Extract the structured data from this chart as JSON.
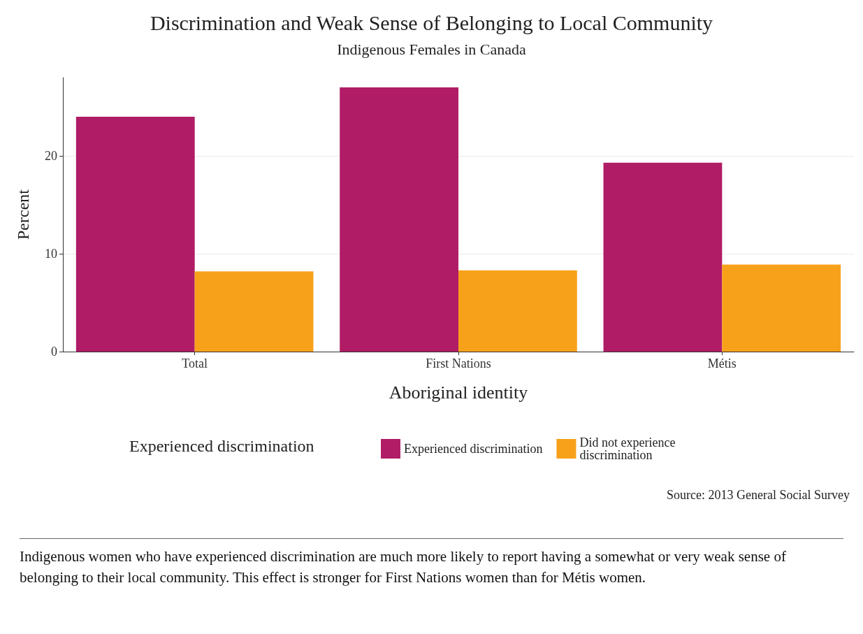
{
  "chart_data": {
    "type": "bar",
    "title": "Discrimination and Weak Sense of Belonging to Local Community",
    "subtitle": "Indigenous Females in Canada",
    "xlabel": "Aboriginal identity",
    "ylabel": "Percent",
    "legend_title": "Experienced discrimination",
    "categories": [
      "Total",
      "First Nations",
      "Métis"
    ],
    "series": [
      {
        "name": "Experienced discrimination",
        "color": "#b01c65",
        "values": [
          24,
          27,
          19.3
        ]
      },
      {
        "name": "Did not experience discrimination",
        "color": "#f7a11a",
        "values": [
          8.2,
          8.3,
          8.9
        ]
      }
    ],
    "ylim": [
      0,
      28
    ],
    "yticks": [
      0,
      10,
      20
    ],
    "grid": "y",
    "legend": "bottom",
    "annotations": [
      "Source: 2013 General Social Survey",
      "Indigenous women who have experienced discrimination are much more likely to report having a somewhat or very weak sense of belonging to their local community. This effect is stronger for First Nations women than for Métis women."
    ]
  }
}
